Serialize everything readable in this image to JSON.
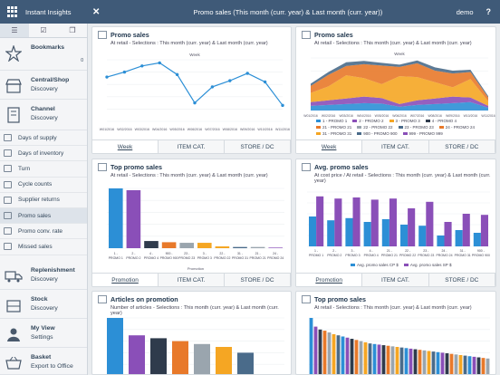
{
  "header": {
    "app_name": "Instant Insights",
    "title": "Promo sales (This month (curr. year) & Last month (curr. year))",
    "user": "demo",
    "help": "?"
  },
  "sidebar": {
    "sections": [
      {
        "title": "Bookmarks",
        "sub": ""
      },
      {
        "title": "Central/Shop",
        "sub": "Discovery"
      },
      {
        "title": "Channel",
        "sub": "Discovery"
      }
    ],
    "items": [
      "Days of supply",
      "Days of inventory",
      "Turn",
      "Cycle counts",
      "Supplier returns",
      "Promo sales",
      "Promo conv. rate",
      "Missed sales"
    ],
    "bottom": [
      {
        "title": "Replenishment",
        "sub": "Discovery"
      },
      {
        "title": "Stock",
        "sub": "Discovery"
      },
      {
        "title": "My View",
        "sub": "Settings"
      },
      {
        "title": "Basket",
        "sub": "Export to Office"
      }
    ],
    "bookmark_count": "0"
  },
  "cards": {
    "c1": {
      "title": "Promo sales",
      "sub": "At retail - Selections : This month (curr. year) & Last month (curr. year)",
      "axis": "Week",
      "tabs": [
        "Week",
        "ITEM CAT.",
        "STORE / DC"
      ]
    },
    "c2": {
      "title": "Promo sales",
      "sub": "At retail - Selections : This month (curr. year) & Last month (curr. year)",
      "axis": "Week",
      "tabs": [
        "Week",
        "ITEM CAT.",
        "STORE / DC"
      ]
    },
    "c3": {
      "title": "Top promo sales",
      "sub": "At retail - Selections : This month (curr. year) & Last month (curr. year)",
      "axis": "Promotion",
      "tabs": [
        "Promotion",
        "ITEM CAT.",
        "STORE / DC"
      ]
    },
    "c4": {
      "title": "Avg. promo sales",
      "sub": "At cost price / At retail - Selections : This month (curr. year) & Last month (curr. year)",
      "tabs": [
        "Promotion",
        "ITEM CAT.",
        "STORE / DC"
      ],
      "legend": [
        "Avg. promo sales CP $",
        "Avg. promo sales SP $"
      ]
    },
    "c5": {
      "title": "Articles on promotion",
      "sub": "Number of articles - Selections : This month (curr. year) & Last month (curr. year)"
    },
    "c6": {
      "title": "Top promo sales",
      "sub": "At retail - Selections : This month (curr. year) & Last month (curr. year)"
    }
  },
  "chart_data": [
    {
      "type": "line",
      "title": "Promo sales",
      "x": [
        "W01/2016",
        "W02/2016",
        "W03/2016",
        "W04/2016",
        "W05/2016",
        "W06/2016",
        "W07/2016",
        "W08/2016",
        "W09/2016",
        "W10/2016",
        "W11/2016"
      ],
      "values": [
        72,
        80,
        90,
        95,
        76,
        30,
        56,
        66,
        78,
        64,
        26
      ],
      "ylim": [
        0,
        100
      ],
      "color": "#2c8fd6"
    },
    {
      "type": "area",
      "title": "Promo sales",
      "x": [
        "W01/2016",
        "W02/2016",
        "W03/2016",
        "W04/2016",
        "W05/2016",
        "W06/2016",
        "W07/2016",
        "W08/2016",
        "W09/2016",
        "W10/2016",
        "W11/2016"
      ],
      "series": [
        {
          "name": "1 - PROMO 1",
          "color": "#2c8fd6",
          "values": [
            10,
            12,
            14,
            16,
            15,
            8,
            12,
            14,
            16,
            18,
            6
          ]
        },
        {
          "name": "2 - PROMO 2",
          "color": "#8a4fb8",
          "values": [
            8,
            10,
            12,
            14,
            12,
            6,
            10,
            12,
            14,
            10,
            4
          ]
        },
        {
          "name": "3 - PROMO 3",
          "color": "#f5a623",
          "values": [
            20,
            30,
            50,
            40,
            30,
            60,
            50,
            35,
            20,
            40,
            10
          ]
        },
        {
          "name": "21 - PROMO 21",
          "color": "#e8792a",
          "values": [
            15,
            25,
            20,
            30,
            40,
            20,
            30,
            25,
            30,
            15,
            8
          ]
        },
        {
          "name": "900 - PROMO 900",
          "color": "#4a6b8a",
          "values": [
            5,
            6,
            8,
            7,
            6,
            5,
            6,
            7,
            6,
            5,
            3
          ]
        }
      ],
      "legend": [
        "1 - PROMO 1",
        "2 - PROMO 2",
        "3 - PROMO 3",
        "4 - PROMO 4",
        "21 - PROMO 21",
        "22 - PROMO 22",
        "23 - PROMO 23",
        "24 - PROMO 24",
        "31 - PROMO 31",
        "900 - PROMO 900",
        "999 - PROMO 999"
      ]
    },
    {
      "type": "bar",
      "title": "Top promo sales",
      "categories": [
        "1 - PROMO 1",
        "2 - PROMO 2",
        "4 - PROMO 4",
        "900 - PROMO 900",
        "23 - PROMO 23",
        "3 - PROMO 3",
        "22 - PROMO 22",
        "31 - PROMO 31",
        "21 - PROMO 21",
        "24 - PROMO 24"
      ],
      "values": [
        100,
        97,
        12,
        10,
        9,
        9,
        3,
        2,
        2,
        1
      ],
      "colors": [
        "#2c8fd6",
        "#8a4fb8",
        "#2f3b4c",
        "#e8792a",
        "#9aa5ae",
        "#f5a623",
        "#f5a623",
        "#4a6b8a",
        "#9aa5ae",
        "#8a4fb8"
      ]
    },
    {
      "type": "bar",
      "title": "Avg. promo sales",
      "categories": [
        "1 - PROMO 1",
        "2 - PROMO 2",
        "3 - PROMO 3",
        "4 - PROMO 4",
        "21 - PROMO 21",
        "22 - PROMO 22",
        "23 - PROMO 23",
        "24 - PROMO 24",
        "31 - PROMO 31",
        "900 - PROMO 900"
      ],
      "series": [
        {
          "name": "Avg. promo sales CP $",
          "color": "#2c8fd6",
          "values": [
            55,
            48,
            52,
            45,
            50,
            40,
            38,
            20,
            30,
            25
          ]
        },
        {
          "name": "Avg. promo sales SP $",
          "color": "#8a4fb8",
          "values": [
            92,
            88,
            90,
            86,
            88,
            70,
            82,
            45,
            60,
            58
          ]
        }
      ]
    },
    {
      "type": "bar",
      "title": "Articles on promotion",
      "values": [
        100,
        70,
        65,
        60,
        55,
        50,
        40
      ],
      "colors": [
        "#2c8fd6",
        "#8a4fb8",
        "#2f3b4c",
        "#e8792a",
        "#9aa5ae",
        "#f5a623",
        "#4a6b8a"
      ]
    },
    {
      "type": "bar",
      "title": "Top promo sales",
      "values": [
        100,
        85,
        80,
        78,
        75,
        72,
        70,
        68,
        66,
        64,
        62,
        60,
        58,
        56,
        55,
        54,
        53,
        52,
        51,
        50,
        49,
        48,
        47,
        46,
        45,
        44,
        43,
        42,
        41,
        40,
        39,
        38,
        37,
        36,
        35,
        34,
        33,
        32,
        31,
        30
      ],
      "colors": [
        "#2c8fd6",
        "#8a4fb8",
        "#2f3b4c",
        "#e8792a",
        "#9aa5ae",
        "#f5a623",
        "#4a6b8a"
      ]
    }
  ]
}
